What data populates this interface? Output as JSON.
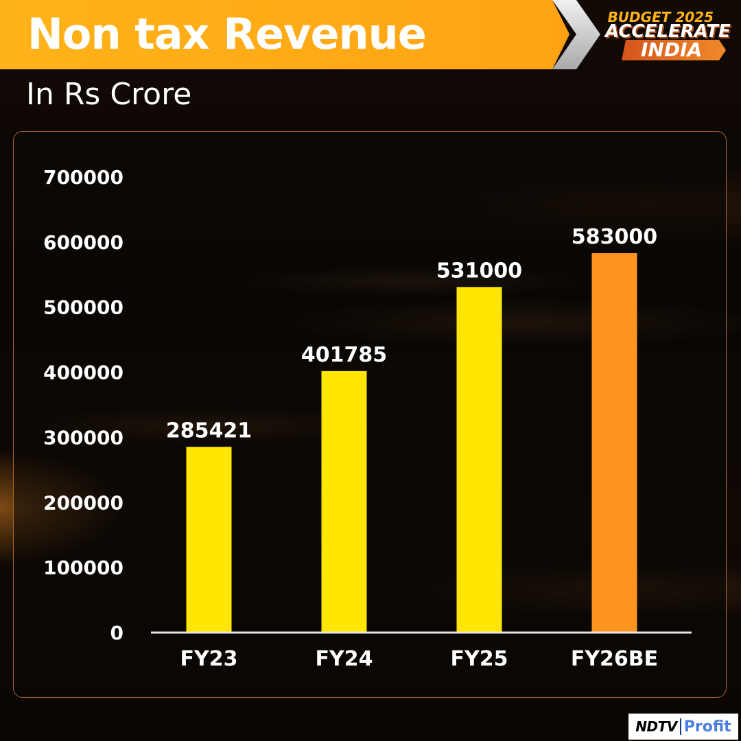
{
  "header": {
    "title": "Non tax Revenue",
    "subtitle": "In Rs Crore"
  },
  "event_logo": {
    "line1": "BUDGET 2025",
    "line2": "ACCELERATE",
    "line3": "INDIA"
  },
  "footer_logo": {
    "ndtv": "NDTV",
    "profit": "Profit"
  },
  "colors": {
    "title_bar": "#ffb31a",
    "bar_default": "#ffe600",
    "bar_highlight": "#ff9320",
    "panel_border": "#a8652a"
  },
  "chart_data": {
    "type": "bar",
    "title": "Non tax Revenue",
    "subtitle": "In Rs Crore",
    "xlabel": "",
    "ylabel": "",
    "categories": [
      "FY23",
      "FY24",
      "FY25",
      "FY26BE"
    ],
    "values": [
      285421,
      401785,
      531000,
      583000
    ],
    "data_labels": [
      "285421",
      "401785",
      "531000",
      "583000"
    ],
    "highlight_index": 3,
    "ylim": [
      0,
      700000
    ],
    "yticks": [
      0,
      100000,
      200000,
      300000,
      400000,
      500000,
      600000,
      700000
    ],
    "ytick_labels": [
      "0",
      "100000",
      "200000",
      "300000",
      "400000",
      "500000",
      "600000",
      "700000"
    ],
    "grid": false,
    "legend": "none"
  }
}
